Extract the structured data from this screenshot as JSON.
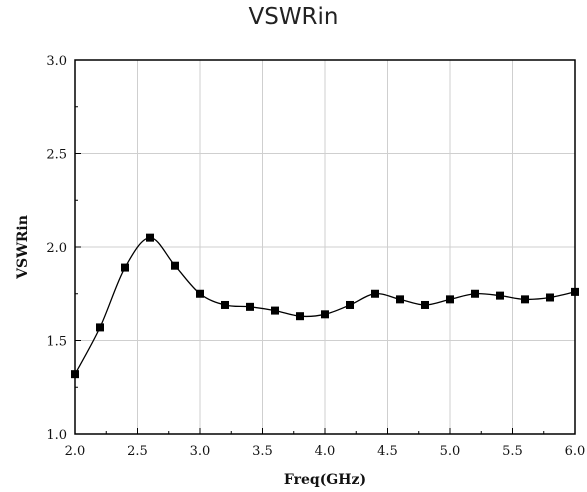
{
  "chart_data": {
    "type": "line",
    "title": "VSWRin",
    "xlabel": "Freq(GHz)",
    "ylabel": "VSWRin",
    "xlim": [
      2.0,
      6.0
    ],
    "ylim": [
      1.0,
      3.0
    ],
    "x_ticks": [
      "2.0",
      "2.5",
      "3.0",
      "3.5",
      "4.0",
      "4.5",
      "5.0",
      "5.5",
      "6.0"
    ],
    "y_ticks": [
      "1.0",
      "1.5",
      "2.0",
      "2.5",
      "3.0"
    ],
    "grid": true,
    "series": [
      {
        "marker": "square",
        "color": "#000000",
        "x": [
          2.0,
          2.2,
          2.4,
          2.6,
          2.8,
          3.0,
          3.2,
          3.4,
          3.6,
          3.8,
          4.0,
          4.2,
          4.4,
          4.6,
          4.8,
          5.0,
          5.2,
          5.4,
          5.6,
          5.8,
          6.0
        ],
        "y": [
          1.32,
          1.57,
          1.89,
          2.05,
          1.9,
          1.75,
          1.69,
          1.68,
          1.66,
          1.63,
          1.64,
          1.69,
          1.75,
          1.72,
          1.69,
          1.72,
          1.75,
          1.74,
          1.72,
          1.73,
          1.76
        ]
      }
    ]
  }
}
